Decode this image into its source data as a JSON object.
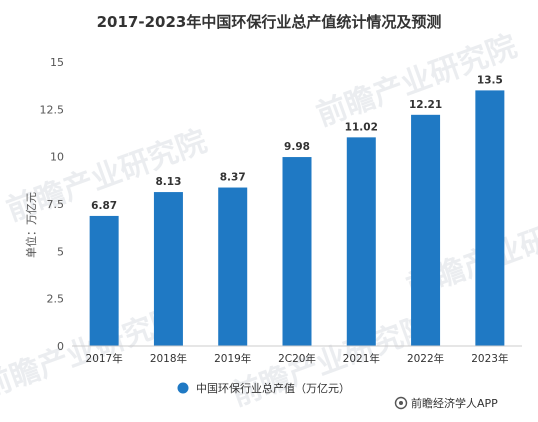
{
  "chart_data": {
    "type": "bar",
    "title": "2017-2023年中国环保行业总产值统计情况及预测",
    "categories": [
      "2017年",
      "2018年",
      "2019年",
      "2C20年",
      "2021年",
      "2022年",
      "2023年"
    ],
    "series": [
      {
        "name": "中国环保行业总产值（万亿元）",
        "values": [
          6.87,
          8.13,
          8.37,
          9.98,
          11.02,
          12.21,
          13.5
        ],
        "value_labels": [
          "6.87",
          "8.13",
          "8.37",
          "9.98",
          "11.02",
          "12.21",
          "13.5"
        ],
        "color": "#1f79c4"
      }
    ],
    "ylabel": "单位：万亿元",
    "xlabel": "",
    "ylim": [
      0,
      15
    ],
    "yticks": [
      0,
      2.5,
      5,
      7.5,
      10,
      12.5,
      15
    ],
    "ytick_labels": [
      "0",
      "2.5",
      "5",
      "7.5",
      "10",
      "12.5",
      "15"
    ],
    "grid": false,
    "legend_position": "bottom"
  },
  "source": {
    "icon": "logo-icon",
    "label": "前瞻经济学人APP"
  },
  "watermark": {
    "text": "前瞻产业研究院"
  }
}
